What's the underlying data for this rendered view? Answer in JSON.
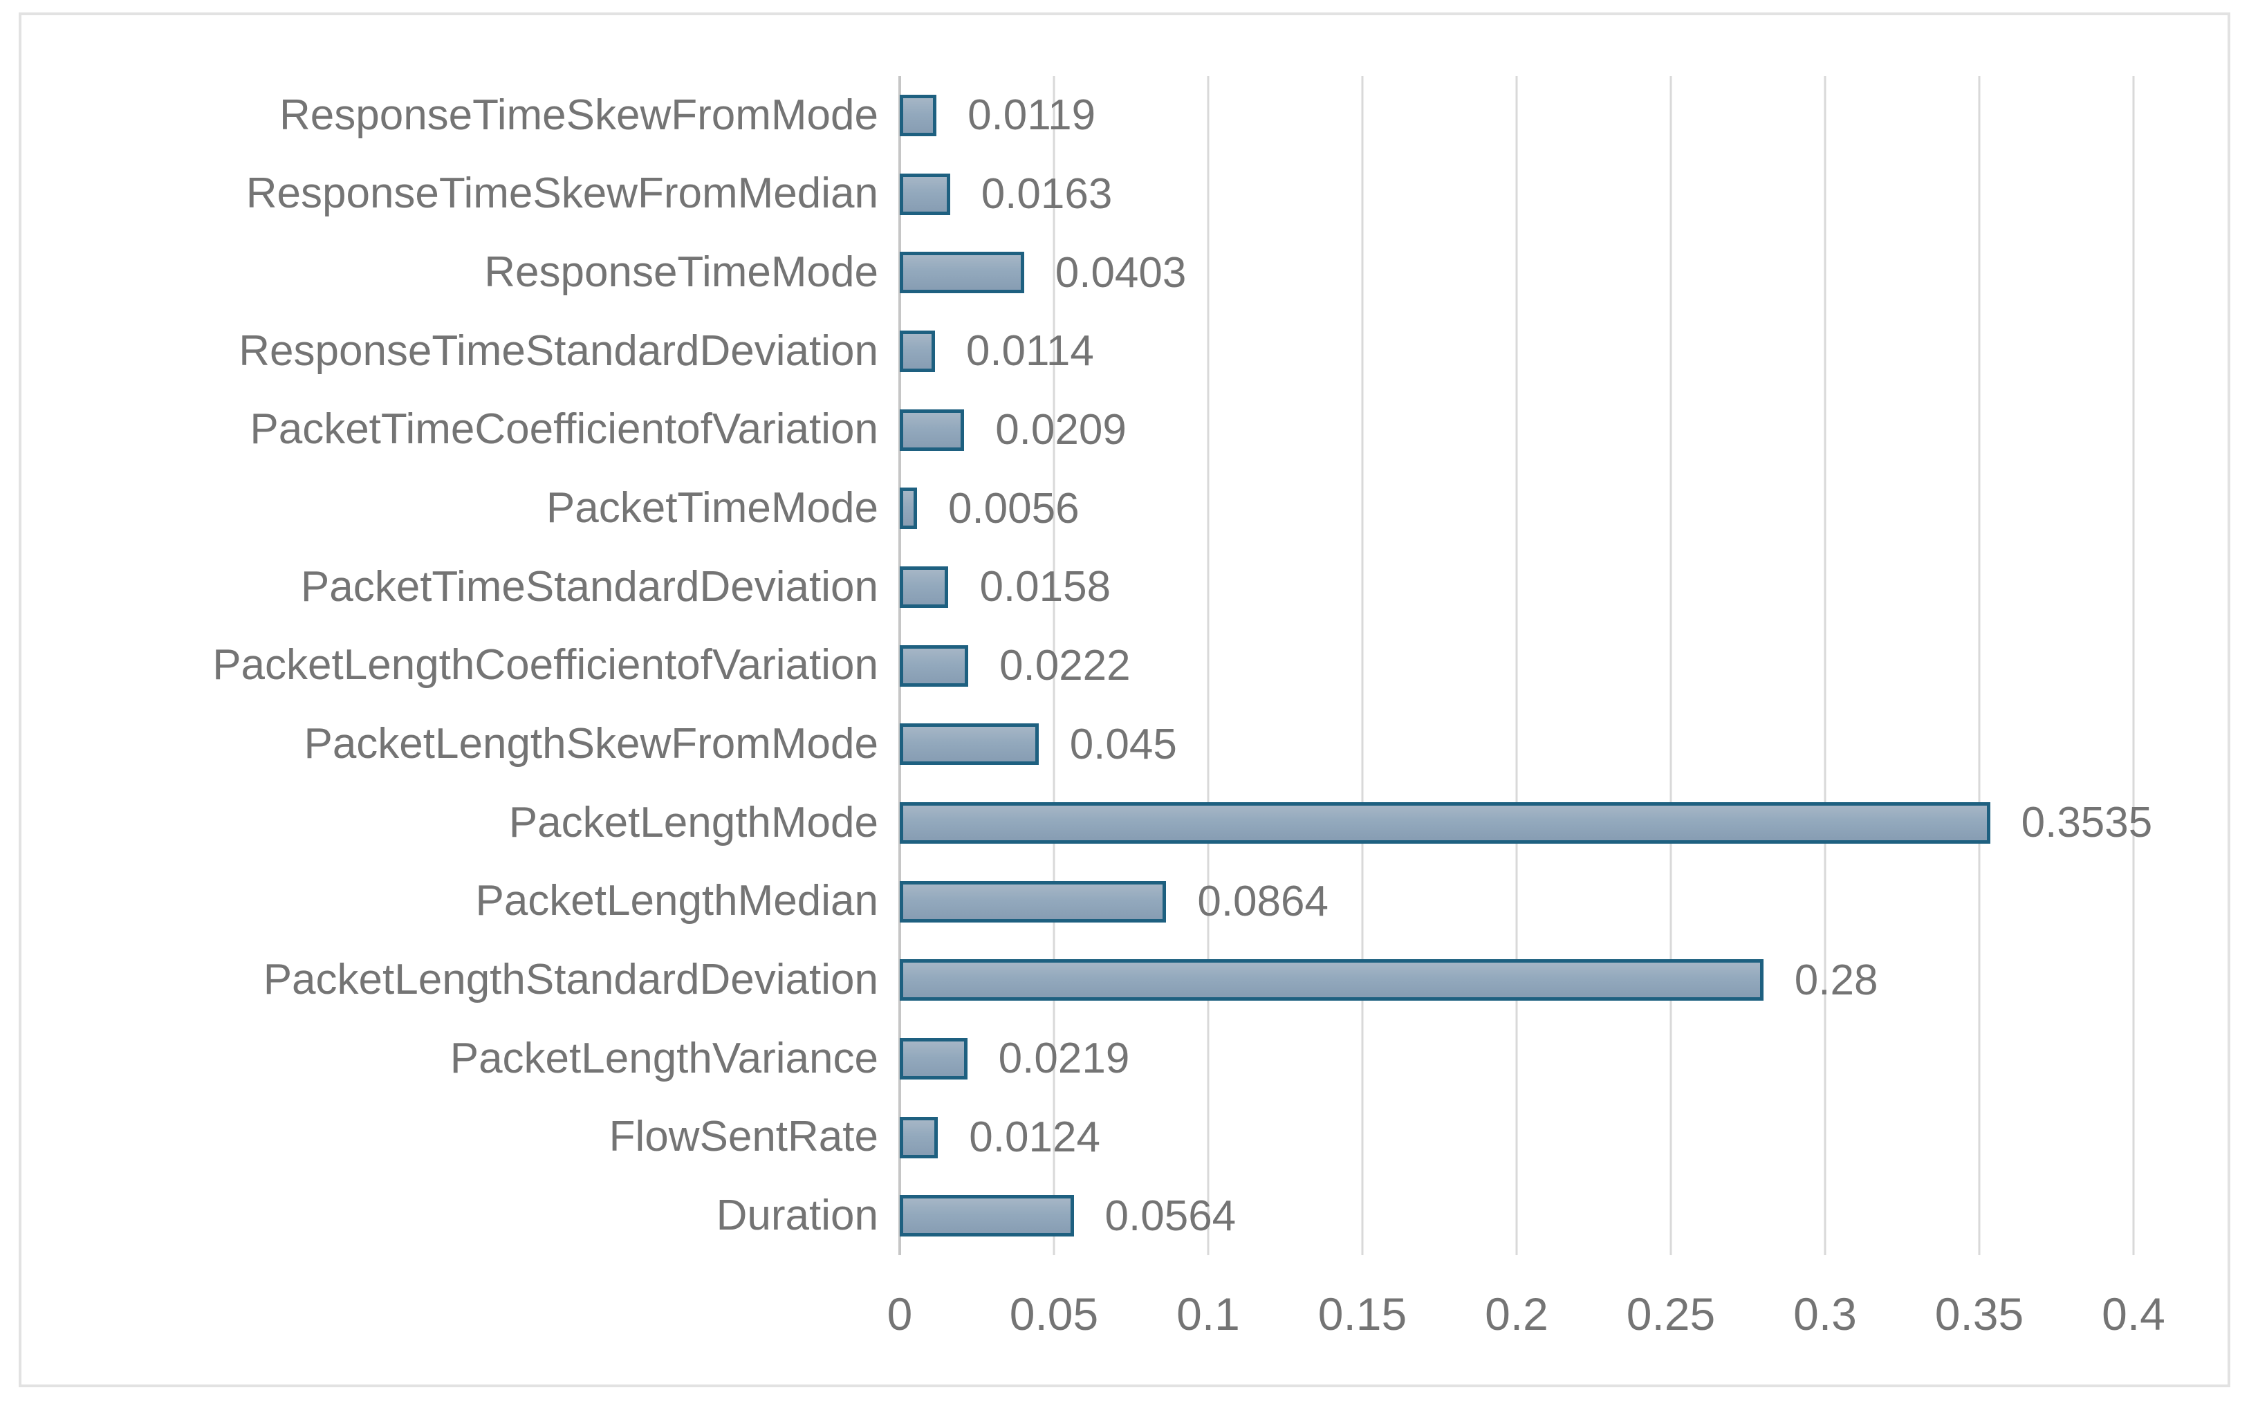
{
  "chart_data": {
    "type": "bar",
    "orientation": "horizontal",
    "title": "",
    "xlabel": "",
    "ylabel": "",
    "categories": [
      "ResponseTimeSkewFromMode",
      "ResponseTimeSkewFromMedian",
      "ResponseTimeMode",
      "ResponseTimeStandardDeviation",
      "PacketTimeCoefficientofVariation",
      "PacketTimeMode",
      "PacketTimeStandardDeviation",
      "PacketLengthCoefficientofVariation",
      "PacketLengthSkewFromMode",
      "PacketLengthMode",
      "PacketLengthMedian",
      "PacketLengthStandardDeviation",
      "PacketLengthVariance",
      "FlowSentRate",
      "Duration"
    ],
    "values": [
      0.0119,
      0.0163,
      0.0403,
      0.0114,
      0.0209,
      0.0056,
      0.0158,
      0.0222,
      0.045,
      0.3535,
      0.0864,
      0.28,
      0.0219,
      0.0124,
      0.0564
    ],
    "value_labels": [
      "0.0119",
      "0.0163",
      "0.0403",
      "0.0114",
      "0.0209",
      "0.0056",
      "0.0158",
      "0.0222",
      "0.045",
      "0.3535",
      "0.0864",
      "0.28",
      "0.0219",
      "0.0124",
      "0.0564"
    ],
    "xlim": [
      0,
      0.4
    ],
    "x_ticks": [
      "0",
      "0.05",
      "0.1",
      "0.15",
      "0.2",
      "0.25",
      "0.3",
      "0.35",
      "0.4"
    ],
    "x_tick_values": [
      0,
      0.05,
      0.1,
      0.15,
      0.2,
      0.25,
      0.3,
      0.35,
      0.4
    ],
    "grid": true,
    "legend": false,
    "colors": {
      "bar_fill_top": "#a6b6c6",
      "bar_fill_bottom": "#879db3",
      "bar_border": "#1e6080",
      "gridline": "#d9d9d9",
      "axis_line": "#c6c6c6",
      "text": "#747474",
      "frame_border": "#e2e2e2",
      "background": "#ffffff"
    }
  }
}
